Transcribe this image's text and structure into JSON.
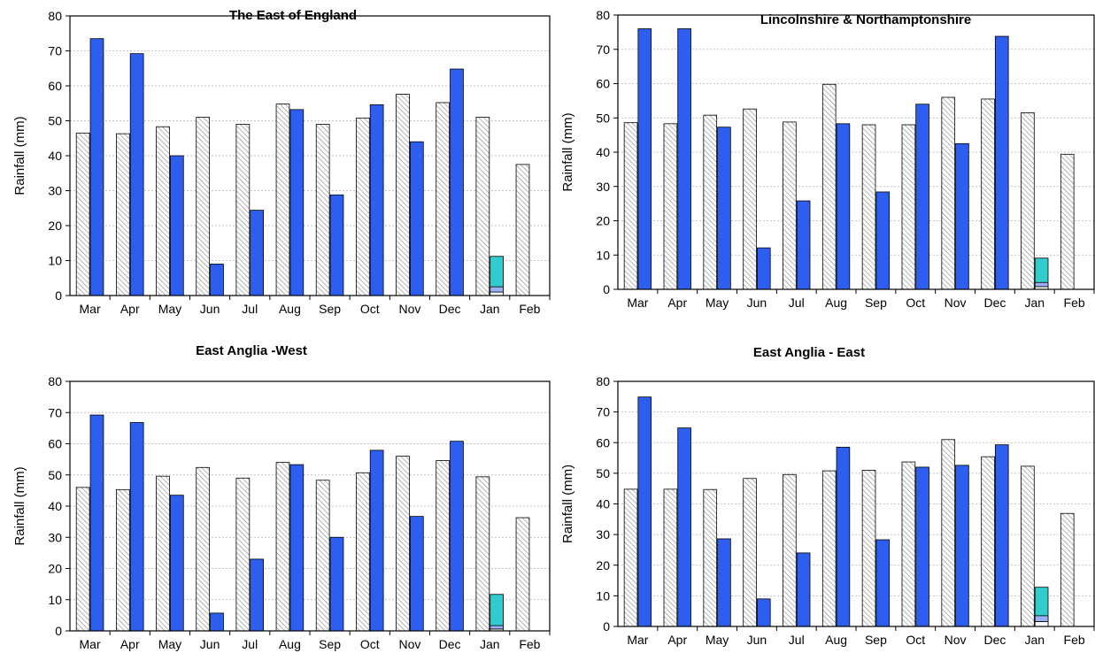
{
  "chart_data": [
    {
      "type": "bar",
      "title": "The East of England",
      "ylabel": "Rainfall (mm)",
      "xlabel": "",
      "ylim": [
        0,
        80
      ],
      "yticks": [
        0,
        10,
        20,
        30,
        40,
        50,
        60,
        70,
        80
      ],
      "grid": true,
      "categories": [
        "Mar",
        "Apr",
        "May",
        "Jun",
        "Jul",
        "Aug",
        "Sep",
        "Oct",
        "Nov",
        "Dec",
        "Jan",
        "Feb"
      ],
      "series": [
        {
          "values": [
            46.5,
            46.3,
            48.3,
            51.0,
            49.0,
            54.8,
            49.0,
            50.8,
            57.6,
            55.2,
            51.0,
            37.5
          ],
          "color": "#ffffff",
          "pattern": "diagonal-hatch"
        },
        {
          "values": [
            73.5,
            69.2,
            40.0,
            9.0,
            24.4,
            53.2,
            28.8,
            54.6,
            44.0,
            64.8,
            null,
            null
          ],
          "color": "#2e5ef0"
        },
        {
          "values": [
            null,
            null,
            null,
            null,
            null,
            null,
            null,
            null,
            null,
            null,
            11.2,
            null
          ],
          "color": "#33cccc",
          "segments": [
            1.0,
            2.5
          ]
        }
      ]
    },
    {
      "type": "bar",
      "title": "Lincolnshire & Northamptonshire",
      "ylabel": "Rainfall (mm)",
      "xlabel": "",
      "ylim": [
        0,
        80
      ],
      "yticks": [
        0,
        10,
        20,
        30,
        40,
        50,
        60,
        70,
        80
      ],
      "grid": true,
      "categories": [
        "Mar",
        "Apr",
        "May",
        "Jun",
        "Jul",
        "Aug",
        "Sep",
        "Oct",
        "Nov",
        "Dec",
        "Jan",
        "Feb"
      ],
      "series": [
        {
          "values": [
            48.6,
            48.3,
            50.8,
            52.6,
            48.8,
            59.8,
            48.0,
            48.0,
            56.0,
            55.5,
            51.5,
            39.4
          ],
          "color": "#ffffff",
          "pattern": "diagonal-hatch"
        },
        {
          "values": [
            76.0,
            76.0,
            47.3,
            12.1,
            25.8,
            48.3,
            28.4,
            54.0,
            42.5,
            73.8,
            null,
            null
          ],
          "color": "#2e5ef0"
        },
        {
          "values": [
            null,
            null,
            null,
            null,
            null,
            null,
            null,
            null,
            null,
            null,
            9.1,
            null
          ],
          "color": "#33cccc",
          "segments": [
            0.8,
            2.0
          ]
        }
      ]
    },
    {
      "type": "bar",
      "title": "East Anglia -West",
      "ylabel": "Rainfall (mm)",
      "xlabel": "",
      "ylim": [
        0,
        80
      ],
      "yticks": [
        0,
        10,
        20,
        30,
        40,
        50,
        60,
        70,
        80
      ],
      "grid": true,
      "categories": [
        "Mar",
        "Apr",
        "May",
        "Jun",
        "Jul",
        "Aug",
        "Sep",
        "Oct",
        "Nov",
        "Dec",
        "Jan",
        "Feb"
      ],
      "series": [
        {
          "values": [
            46.0,
            45.3,
            49.6,
            52.4,
            49.0,
            54.0,
            48.3,
            50.7,
            56.0,
            54.6,
            49.4,
            36.3
          ],
          "color": "#ffffff",
          "pattern": "diagonal-hatch"
        },
        {
          "values": [
            69.2,
            66.8,
            43.5,
            5.7,
            23.0,
            53.3,
            30.0,
            57.9,
            36.7,
            60.8,
            null,
            null
          ],
          "color": "#2e5ef0"
        },
        {
          "values": [
            null,
            null,
            null,
            null,
            null,
            null,
            null,
            null,
            null,
            null,
            11.7,
            null
          ],
          "color": "#33cccc",
          "segments": [
            0.6,
            1.7
          ]
        }
      ]
    },
    {
      "type": "bar",
      "title": "East Anglia - East",
      "ylabel": "Rainfall (mm)",
      "xlabel": "",
      "ylim": [
        0,
        80
      ],
      "yticks": [
        0,
        10,
        20,
        30,
        40,
        50,
        60,
        70,
        80
      ],
      "grid": true,
      "categories": [
        "Mar",
        "Apr",
        "May",
        "Jun",
        "Jul",
        "Aug",
        "Sep",
        "Oct",
        "Nov",
        "Dec",
        "Jan",
        "Feb"
      ],
      "series": [
        {
          "values": [
            44.8,
            44.8,
            44.7,
            48.3,
            49.6,
            50.8,
            51.0,
            53.7,
            61.0,
            55.4,
            52.3,
            36.9
          ],
          "color": "#ffffff",
          "pattern": "diagonal-hatch"
        },
        {
          "values": [
            74.9,
            64.8,
            28.6,
            9.0,
            24.0,
            58.5,
            28.3,
            52.0,
            52.6,
            59.3,
            null,
            null
          ],
          "color": "#2e5ef0"
        },
        {
          "values": [
            null,
            null,
            null,
            null,
            null,
            null,
            null,
            null,
            null,
            null,
            12.8,
            null
          ],
          "color": "#33cccc",
          "segments": [
            1.6,
            3.5
          ]
        }
      ]
    }
  ]
}
